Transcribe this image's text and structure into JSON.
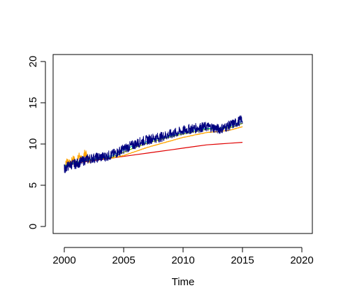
{
  "chart_data": {
    "type": "line",
    "xlabel": "Time",
    "ylabel": "",
    "xlim": [
      2000,
      2020
    ],
    "ylim": [
      0,
      20
    ],
    "x_ticks": [
      "2000",
      "2005",
      "2010",
      "2015",
      "2020"
    ],
    "y_ticks": [
      "0",
      "5",
      "10",
      "15",
      "20"
    ],
    "grid": false,
    "legend": "none",
    "series": [
      {
        "color": "#000080",
        "style": "noisy-observed",
        "x": [
          2000.0,
          2000.5,
          2001.0,
          2001.5,
          2002.0,
          2002.5,
          2003.0,
          2003.5,
          2004.0,
          2004.5,
          2005.0,
          2005.5,
          2006.0,
          2006.5,
          2007.0,
          2007.5,
          2008.0,
          2008.5,
          2009.0,
          2009.5,
          2010.0,
          2010.5,
          2011.0,
          2011.5,
          2012.0,
          2012.5,
          2013.0,
          2013.5,
          2014.0,
          2014.5,
          2015.0
        ],
        "values": [
          7.0,
          7.5,
          7.6,
          7.9,
          8.2,
          8.3,
          8.4,
          8.5,
          8.7,
          9.0,
          9.4,
          9.7,
          10.0,
          10.3,
          10.5,
          10.7,
          10.8,
          11.0,
          11.2,
          11.4,
          11.6,
          11.8,
          11.9,
          12.0,
          12.1,
          12.0,
          11.8,
          12.0,
          12.3,
          12.6,
          13.0
        ]
      },
      {
        "color": "#00BFBF",
        "style": "smooth",
        "x": [
          2000.0,
          2001.0,
          2002.0,
          2003.0,
          2004.0,
          2005.0,
          2006.0,
          2007.0,
          2008.0,
          2009.0,
          2010.0,
          2011.0,
          2012.0,
          2013.0,
          2014.0,
          2015.0
        ],
        "values": [
          7.3,
          7.7,
          8.1,
          8.3,
          8.6,
          9.3,
          9.9,
          10.3,
          10.7,
          11.0,
          11.4,
          11.7,
          11.9,
          11.9,
          12.2,
          12.8
        ]
      },
      {
        "color": "#7FBF00",
        "style": "smooth",
        "x": [
          2000.0,
          2001.0,
          2002.0,
          2003.0,
          2004.0,
          2005.0,
          2006.0,
          2007.0,
          2008.0,
          2009.0,
          2010.0,
          2011.0,
          2012.0,
          2013.0,
          2014.0,
          2015.0
        ],
        "values": [
          7.4,
          7.8,
          8.0,
          8.2,
          8.4,
          9.0,
          9.6,
          10.1,
          10.5,
          10.9,
          11.2,
          11.5,
          11.8,
          11.8,
          12.0,
          12.5
        ]
      },
      {
        "color": "#FFA500",
        "style": "noisy-early",
        "x": [
          2000.0,
          2000.25,
          2000.5,
          2000.75,
          2001.0,
          2001.25,
          2001.5,
          2001.75,
          2002.0,
          2003.0,
          2004.0,
          2005.0,
          2006.0,
          2007.0,
          2008.0,
          2009.0,
          2010.0,
          2011.0,
          2012.0,
          2013.0,
          2014.0,
          2015.0
        ],
        "values": [
          7.0,
          8.1,
          7.5,
          8.3,
          7.6,
          8.6,
          8.0,
          9.0,
          8.1,
          8.2,
          8.3,
          8.6,
          9.1,
          9.6,
          10.0,
          10.4,
          10.8,
          11.1,
          11.4,
          11.5,
          11.7,
          12.1
        ]
      },
      {
        "color": "#E00000",
        "style": "smooth",
        "x": [
          2000.0,
          2000.5,
          2001.0,
          2001.5,
          2002.0,
          2003.0,
          2004.0,
          2005.0,
          2006.0,
          2007.0,
          2008.0,
          2009.0,
          2010.0,
          2011.0,
          2012.0,
          2013.0,
          2014.0,
          2015.0
        ],
        "values": [
          7.0,
          7.5,
          7.6,
          7.8,
          7.9,
          8.1,
          8.3,
          8.5,
          8.7,
          8.9,
          9.1,
          9.3,
          9.5,
          9.7,
          9.9,
          10.0,
          10.1,
          10.2
        ]
      }
    ]
  }
}
